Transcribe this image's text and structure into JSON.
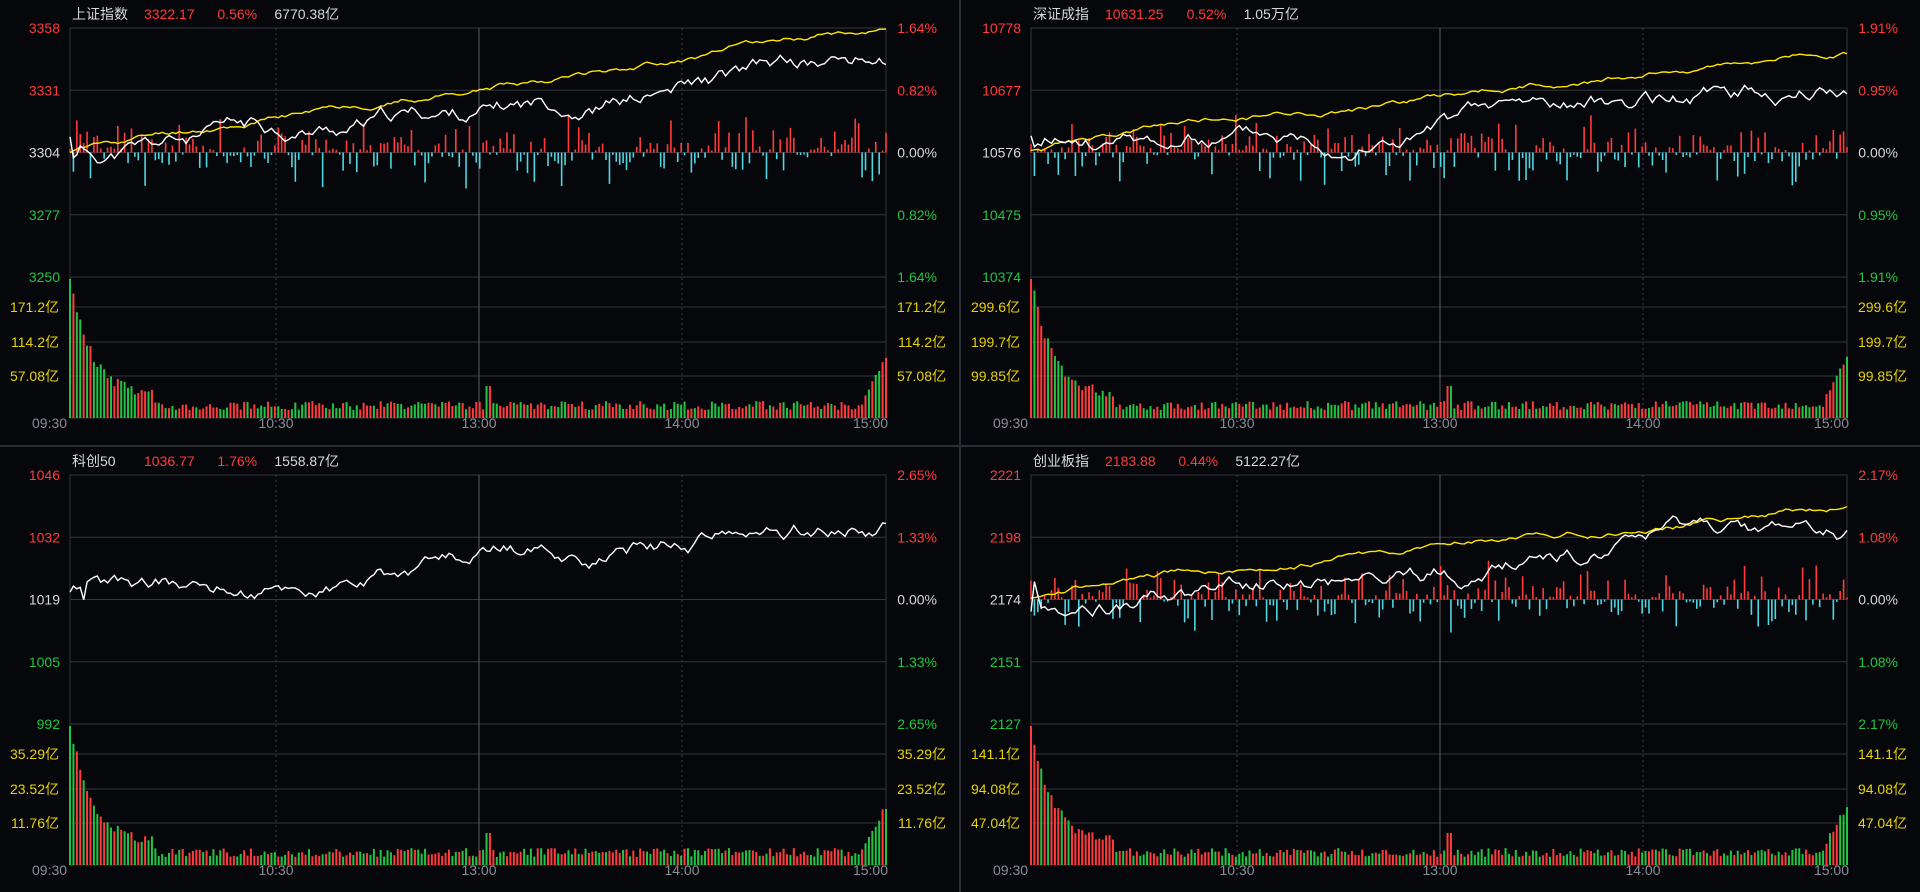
{
  "colors": {
    "up": "#ff3b3b",
    "down": "#22c542",
    "neutral": "#d8d8d8",
    "index_line": "#ffffff",
    "avg_line": "#ffe600",
    "vol_label": "#e8d200",
    "grid": "#34363e",
    "grid_dash": "#3c3f48",
    "time_label": "#8a8d96",
    "bar_up": "#ff3b3b",
    "bar_down": "#4fd6e0"
  },
  "time_labels": [
    "09:30",
    "10:30",
    "13:00",
    "14:00",
    "15:00"
  ],
  "panels": [
    {
      "name": "上证指数",
      "price": "3322.17",
      "change": "0.56%",
      "amount": "6770.38亿",
      "price_ticks": [
        "3358",
        "3331",
        "3304",
        "3277",
        "3250"
      ],
      "pct_ticks": [
        "1.64%",
        "0.82%",
        "0.00%",
        "0.82%",
        "1.64%"
      ],
      "vol_ticks": [
        "171.2亿",
        "114.2亿",
        "57.08亿"
      ],
      "has_avg": true,
      "has_bars": true,
      "seed": 11,
      "trend": 0.78
    },
    {
      "name": "深证成指",
      "price": "10631.25",
      "change": "0.52%",
      "amount": "1.05万亿",
      "price_ticks": [
        "10778",
        "10677",
        "10576",
        "10475",
        "10374"
      ],
      "pct_ticks": [
        "1.91%",
        "0.95%",
        "0.00%",
        "0.95%",
        "1.91%"
      ],
      "vol_ticks": [
        "299.6亿",
        "199.7亿",
        "99.85亿"
      ],
      "has_avg": true,
      "has_bars": true,
      "seed": 23,
      "trend": 0.62
    },
    {
      "name": "科创50",
      "price": "1036.77",
      "change": "1.76%",
      "amount": "1558.87亿",
      "price_ticks": [
        "1046",
        "1032",
        "1019",
        "1005",
        "992"
      ],
      "pct_ticks": [
        "2.65%",
        "1.33%",
        "0.00%",
        "1.33%",
        "2.65%"
      ],
      "vol_ticks": [
        "35.29亿",
        "23.52亿",
        "11.76亿"
      ],
      "has_avg": false,
      "has_bars": false,
      "seed": 37,
      "trend": 0.72
    },
    {
      "name": "创业板指",
      "price": "2183.88",
      "change": "0.44%",
      "amount": "5122.27亿",
      "price_ticks": [
        "2221",
        "2198",
        "2174",
        "2151",
        "2127"
      ],
      "pct_ticks": [
        "2.17%",
        "1.08%",
        "0.00%",
        "1.08%",
        "2.17%"
      ],
      "vol_ticks": [
        "141.1亿",
        "94.08亿",
        "47.04亿"
      ],
      "has_avg": true,
      "has_bars": true,
      "seed": 53,
      "trend": 0.55
    }
  ],
  "chart_data": [
    {
      "type": "line",
      "title": "上证指数",
      "ylim": [
        3250,
        3358
      ],
      "open": 3304,
      "last": 3322.17
    },
    {
      "type": "line",
      "title": "深证成指",
      "ylim": [
        10374,
        10778
      ],
      "open": 10576,
      "last": 10631.25
    },
    {
      "type": "line",
      "title": "科创50",
      "ylim": [
        992,
        1046
      ],
      "open": 1019,
      "last": 1036.77
    },
    {
      "type": "line",
      "title": "创业板指",
      "ylim": [
        2127,
        2221
      ],
      "open": 2174,
      "last": 2183.88
    }
  ]
}
